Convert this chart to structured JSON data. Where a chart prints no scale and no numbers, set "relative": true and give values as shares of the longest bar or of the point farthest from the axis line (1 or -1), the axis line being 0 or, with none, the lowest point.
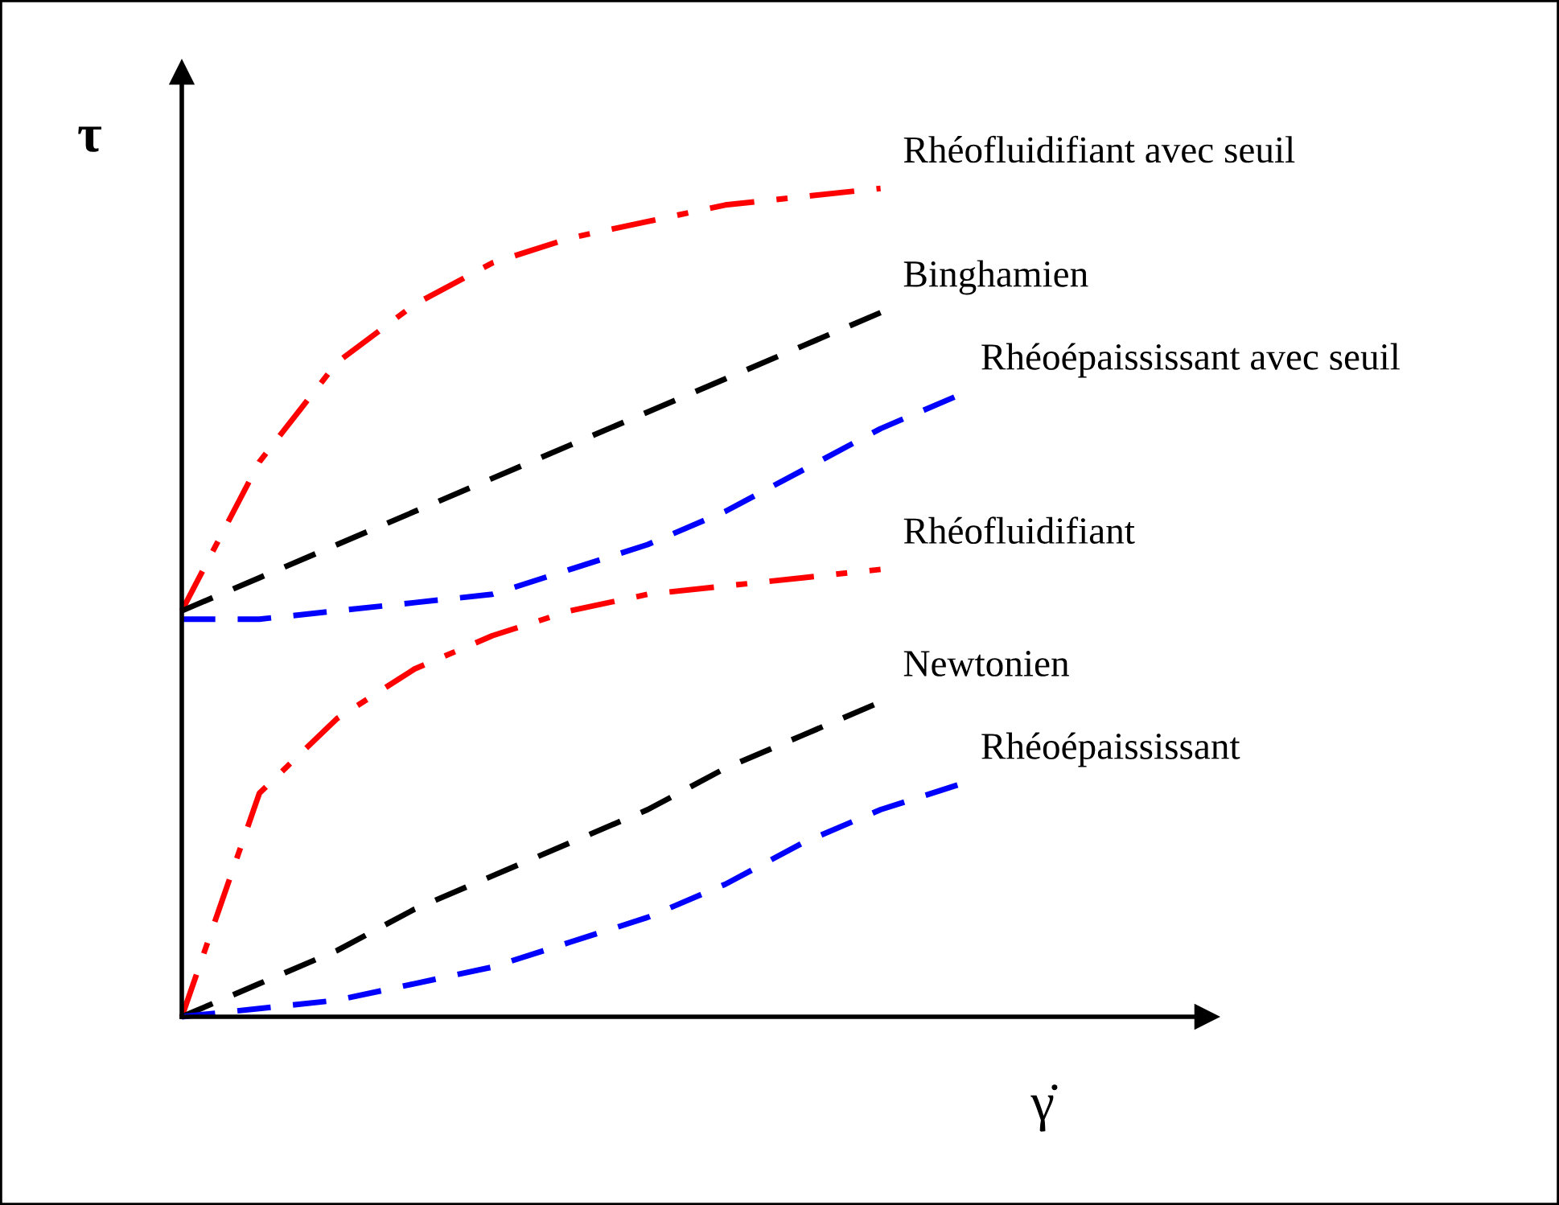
{
  "chart_data": {
    "type": "line",
    "relative": true,
    "xlabel": "γ̇",
    "ylabel": "τ",
    "categories": [
      null,
      null,
      null,
      null,
      null,
      null,
      null,
      null,
      null,
      null,
      null
    ],
    "series": [
      {
        "name": "Rhéofluidifiant avec seuil",
        "color": "#ff0000",
        "line_style": "dashdot",
        "values": [
          0.49,
          0.67,
          0.79,
          0.86,
          0.91,
          0.94,
          0.96,
          0.98,
          0.99,
          1.0,
          null
        ]
      },
      {
        "name": "Binghamien",
        "color": "#000000",
        "line_style": "dashed",
        "values": [
          0.49,
          0.53,
          0.57,
          0.61,
          0.65,
          0.69,
          0.73,
          0.77,
          0.81,
          0.85,
          null
        ]
      },
      {
        "name": "Rhéoépaississant avec seuil",
        "color": "#0000ff",
        "line_style": "dashed",
        "values": [
          0.48,
          0.48,
          0.49,
          0.5,
          0.51,
          0.54,
          0.57,
          0.61,
          0.66,
          0.71,
          0.75
        ]
      },
      {
        "name": "Rhéofluidifiant",
        "color": "#ff0000",
        "line_style": "dashdot",
        "values": [
          0,
          0.27,
          0.36,
          0.42,
          0.46,
          0.49,
          0.51,
          0.52,
          0.53,
          0.54,
          null
        ]
      },
      {
        "name": "Newtonien",
        "color": "#000000",
        "line_style": "dashed",
        "values": [
          0,
          0.04,
          0.08,
          0.13,
          0.17,
          0.21,
          0.25,
          0.3,
          0.34,
          0.38,
          null
        ]
      },
      {
        "name": "Rhéoépaississant",
        "color": "#0000ff",
        "line_style": "dashed",
        "values": [
          0,
          0.01,
          0.02,
          0.04,
          0.06,
          0.09,
          0.12,
          0.16,
          0.21,
          0.25,
          0.28
        ]
      }
    ]
  }
}
